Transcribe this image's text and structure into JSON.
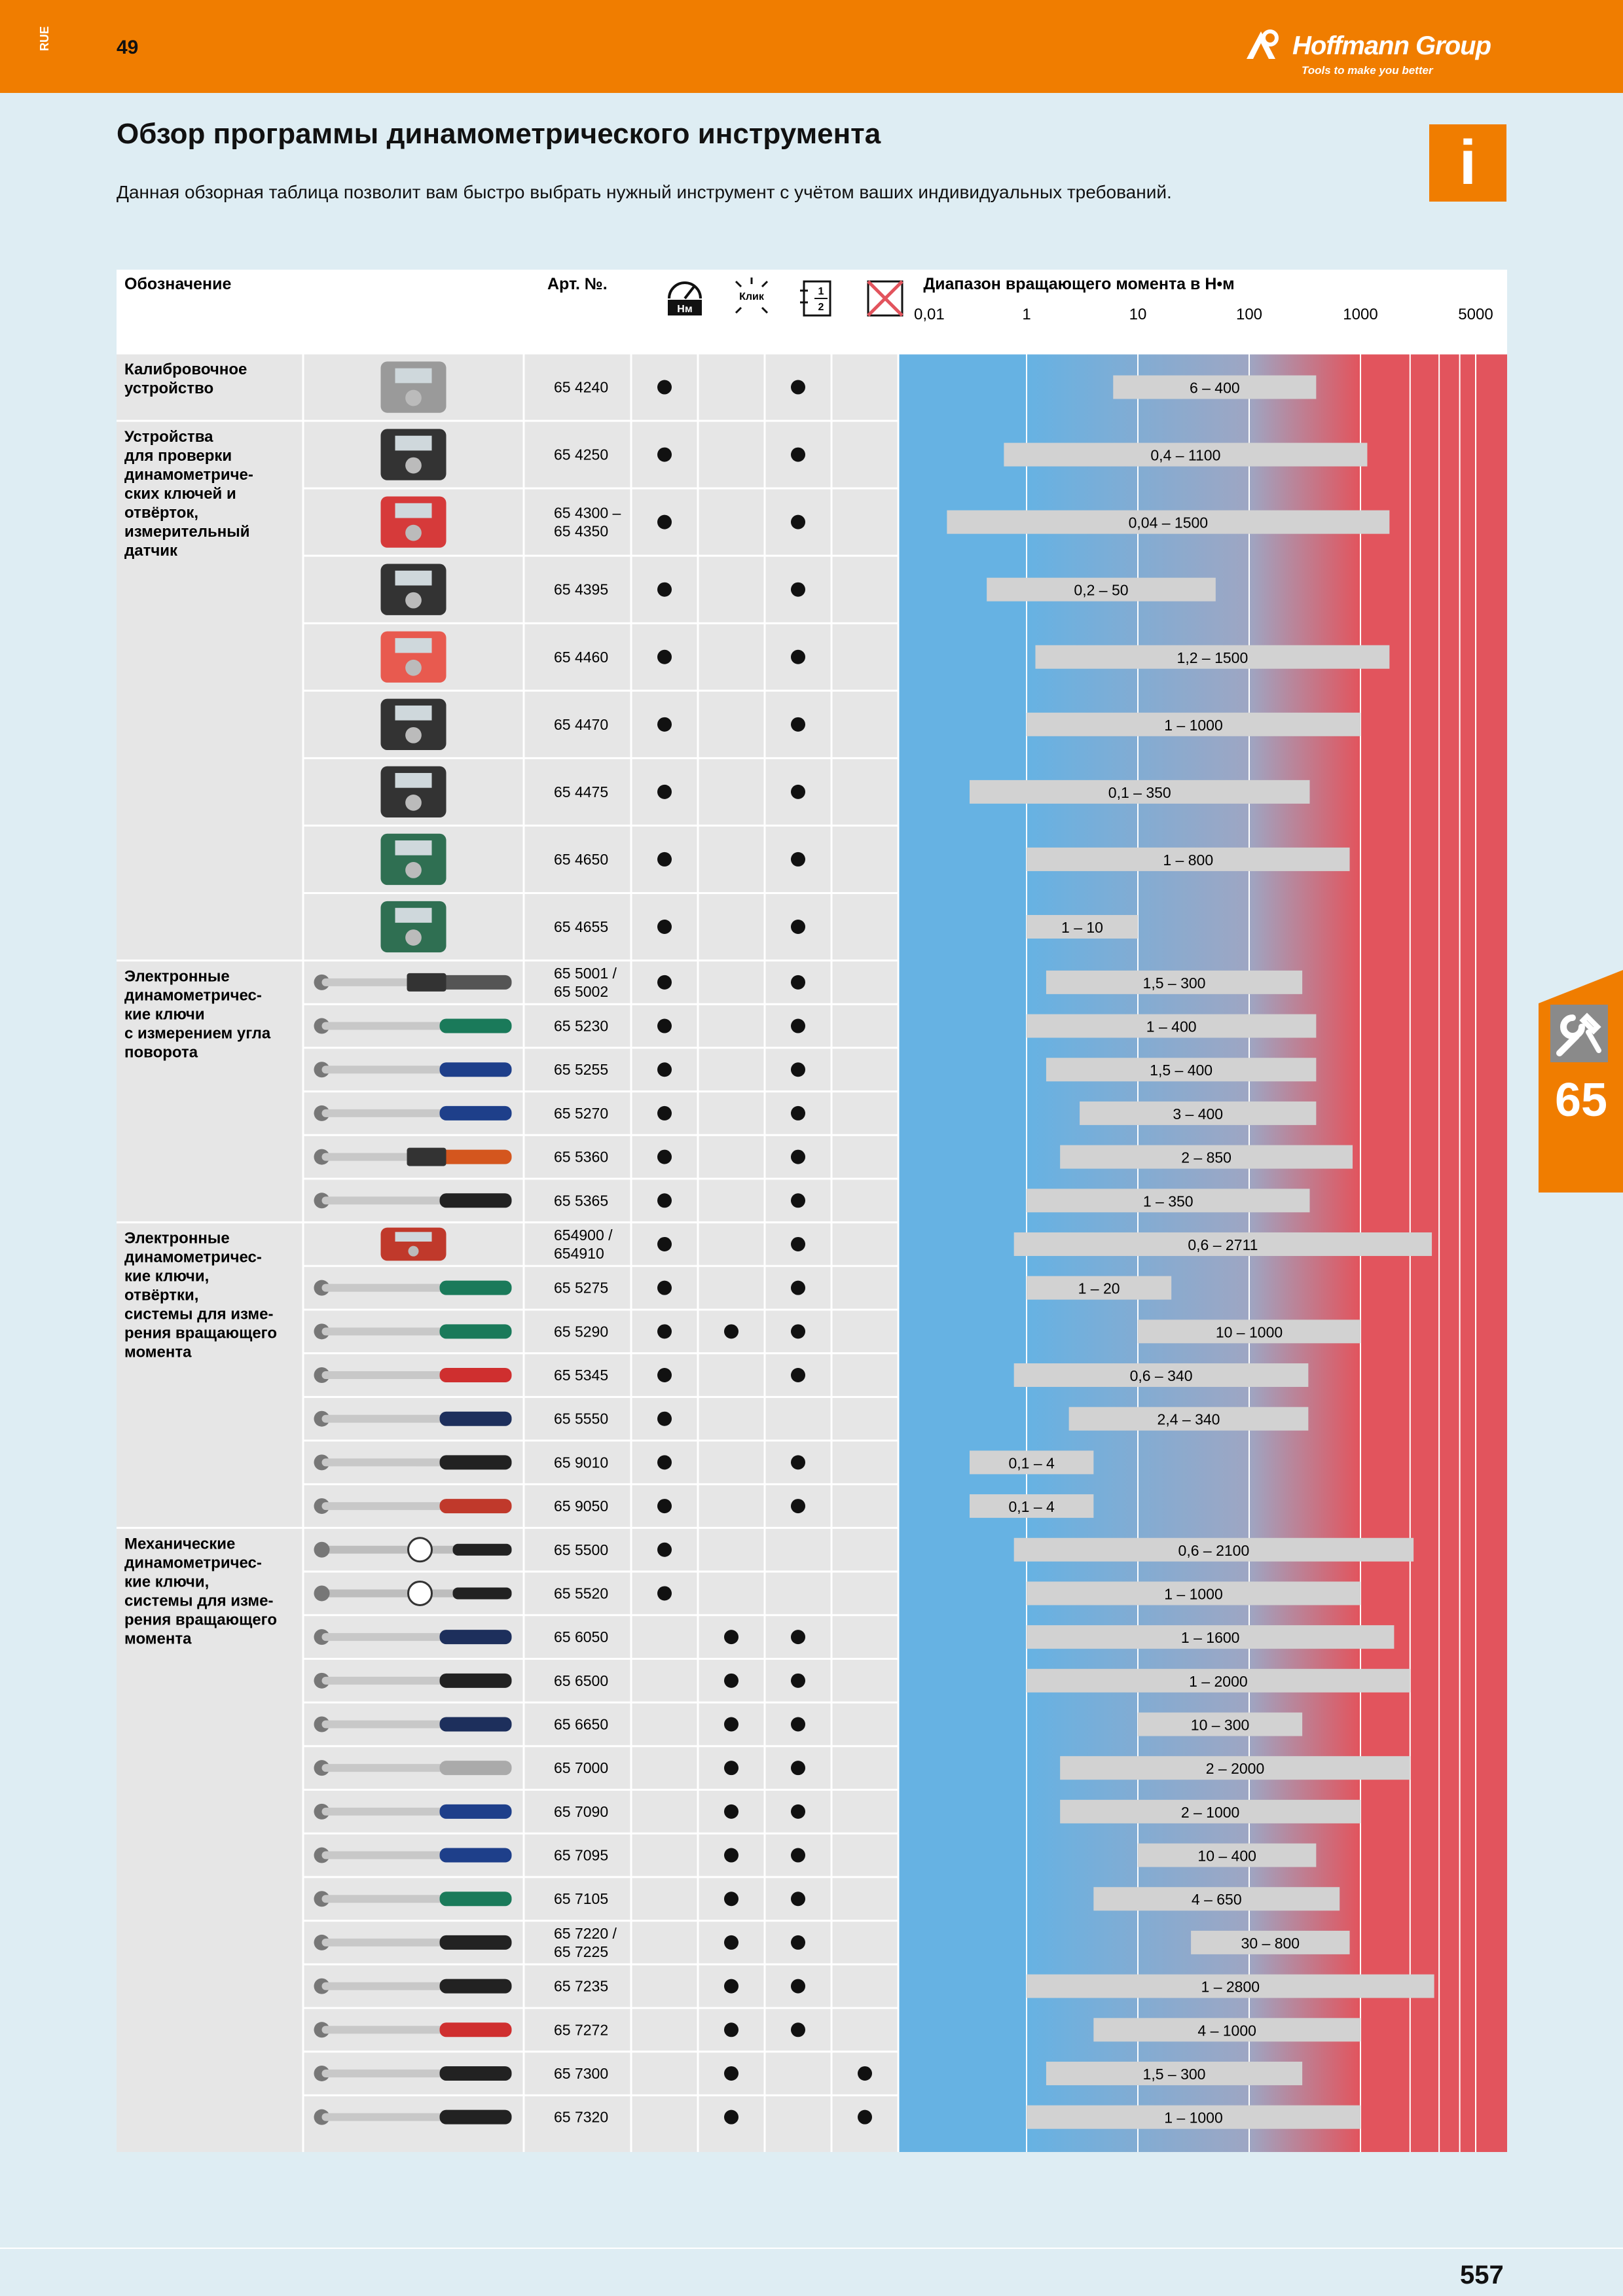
{
  "header": {
    "lang_code": "RUE",
    "page_top": "49",
    "brand": "Hoffmann Group",
    "brand_mark": "®",
    "slogan": "Tools to make you better"
  },
  "page": {
    "title": "Обзор программы динамометрического инструмента",
    "subtitle": "Данная обзорная таблица позволит вам быстро выбрать нужный инструмент с учётом ваших индивидуальных требований.",
    "info_letter": "i",
    "side_tab_number": "65",
    "page_bottom": "557"
  },
  "colors": {
    "orange": "#f07d00",
    "blue": "#66b2e3",
    "red": "#e2545d",
    "bar": "#d2d2d2",
    "page_bg": "#deedf3"
  },
  "table": {
    "col_designation": "Обозначение",
    "col_article": "Арт. №.",
    "icon_nm_label": "Нм",
    "icon_click_label": "Клик",
    "icon_half_1": "1",
    "icon_half_2": "2",
    "range_header": "Диапазон вращающего момента в Н•м",
    "scale_ticks": [
      "0,01",
      "1",
      "10",
      "100",
      "1000",
      "5000"
    ],
    "scale_tick_values": [
      0.01,
      1,
      10,
      100,
      1000,
      5000
    ],
    "groups": [
      {
        "label": [
          "Калибровочное",
          "устройство"
        ],
        "first_row": 0
      },
      {
        "label": [
          "Устройства",
          "для проверки",
          "динамометриче-",
          "ских ключей и",
          "отвёрток,",
          "измерительный",
          "датчик"
        ],
        "first_row": 1
      },
      {
        "label": [
          "Электронные",
          "динамометричес-",
          "кие ключи",
          "с измерением угла",
          "поворота"
        ],
        "first_row": 9
      },
      {
        "label": [
          "Электронные",
          "динамометричес-",
          "кие ключи,",
          "отвёртки,",
          "системы для изме-",
          "рения вращающего",
          "момента"
        ],
        "first_row": 15
      },
      {
        "label": [
          "Механические",
          "динамометричес-",
          "кие ключи,",
          "системы для изме-",
          "рения вращающего",
          "момента"
        ],
        "first_row": 22
      }
    ],
    "rows": [
      {
        "art": [
          "65 4240"
        ],
        "nm": true,
        "click": false,
        "half": true,
        "x": false,
        "min": 6,
        "max": 400,
        "range": "6 – 400",
        "img": "bench"
      },
      {
        "art": [
          "65 4250"
        ],
        "nm": true,
        "click": false,
        "half": true,
        "x": false,
        "min": 0.4,
        "max": 1100,
        "range": "0,4 – 1100",
        "img": "tester"
      },
      {
        "art": [
          "65 4300 –",
          "65 4350"
        ],
        "nm": true,
        "click": false,
        "half": true,
        "x": false,
        "min": 0.04,
        "max": 1500,
        "range": "0,04 – 1500",
        "img": "redbox"
      },
      {
        "art": [
          "65 4395"
        ],
        "nm": true,
        "click": false,
        "half": true,
        "x": false,
        "min": 0.2,
        "max": 50,
        "range": "0,2 – 50",
        "img": "tester"
      },
      {
        "art": [
          "65 4460"
        ],
        "nm": true,
        "click": false,
        "half": true,
        "x": false,
        "min": 1.2,
        "max": 1500,
        "range": "1,2 – 1500",
        "img": "sensor"
      },
      {
        "art": [
          "65 4470"
        ],
        "nm": true,
        "click": false,
        "half": true,
        "x": false,
        "min": 1,
        "max": 1000,
        "range": "1 – 1000",
        "img": "tester"
      },
      {
        "art": [
          "65 4475"
        ],
        "nm": true,
        "click": false,
        "half": true,
        "x": false,
        "min": 0.1,
        "max": 350,
        "range": "0,1 – 350",
        "img": "tester"
      },
      {
        "art": [
          "65 4650"
        ],
        "nm": true,
        "click": false,
        "half": true,
        "x": false,
        "min": 1,
        "max": 800,
        "range": "1 – 800",
        "img": "greenbox"
      },
      {
        "art": [
          "65 4655"
        ],
        "nm": true,
        "click": false,
        "half": true,
        "x": false,
        "min": 1,
        "max": 10,
        "range": "1 – 10",
        "img": "greenbox"
      },
      {
        "art": [
          "65 5001 /",
          "65 5002"
        ],
        "nm": true,
        "click": false,
        "half": true,
        "x": false,
        "min": 1.5,
        "max": 300,
        "range": "1,5 – 300",
        "img": "wrench-e"
      },
      {
        "art": [
          "65 5230"
        ],
        "nm": true,
        "click": false,
        "half": true,
        "x": false,
        "min": 1,
        "max": 400,
        "range": "1 – 400",
        "img": "wrench-green"
      },
      {
        "art": [
          "65 5255"
        ],
        "nm": true,
        "click": false,
        "half": true,
        "x": false,
        "min": 1.5,
        "max": 400,
        "range": "1,5 – 400",
        "img": "wrench-blue"
      },
      {
        "art": [
          "65 5270"
        ],
        "nm": true,
        "click": false,
        "half": true,
        "x": false,
        "min": 3,
        "max": 400,
        "range": "3 – 400",
        "img": "wrench-blue"
      },
      {
        "art": [
          "65 5360"
        ],
        "nm": true,
        "click": false,
        "half": true,
        "x": false,
        "min": 2,
        "max": 850,
        "range": "2 – 850",
        "img": "wrench-orange"
      },
      {
        "art": [
          "65 5365"
        ],
        "nm": true,
        "click": false,
        "half": true,
        "x": false,
        "min": 1,
        "max": 350,
        "range": "1 – 350",
        "img": "wrench-black"
      },
      {
        "art": [
          "654900 /",
          "654910"
        ],
        "nm": true,
        "click": false,
        "half": true,
        "x": false,
        "min": 0.6,
        "max": 2711,
        "range": "0,6 – 2711",
        "img": "system"
      },
      {
        "art": [
          "65 5275"
        ],
        "nm": true,
        "click": false,
        "half": true,
        "x": false,
        "min": 1,
        "max": 20,
        "range": "1 – 20",
        "img": "wrench-green"
      },
      {
        "art": [
          "65 5290"
        ],
        "nm": true,
        "click": true,
        "half": true,
        "x": false,
        "min": 10,
        "max": 1000,
        "range": "10 – 1000",
        "img": "wrench-green"
      },
      {
        "art": [
          "65 5345"
        ],
        "nm": true,
        "click": false,
        "half": true,
        "x": false,
        "min": 0.6,
        "max": 340,
        "range": "0,6 – 340",
        "img": "wrench-red"
      },
      {
        "art": [
          "65 5550"
        ],
        "nm": true,
        "click": false,
        "half": false,
        "x": false,
        "min": 2.4,
        "max": 340,
        "range": "2,4 – 340",
        "img": "wrench-navy"
      },
      {
        "art": [
          "65 9010"
        ],
        "nm": true,
        "click": false,
        "half": true,
        "x": false,
        "min": 0.1,
        "max": 4,
        "range": "0,1 – 4",
        "img": "driver"
      },
      {
        "art": [
          "65 9050"
        ],
        "nm": true,
        "click": false,
        "half": true,
        "x": false,
        "min": 0.1,
        "max": 4,
        "range": "0,1 – 4",
        "img": "driver-red"
      },
      {
        "art": [
          "65 5500"
        ],
        "nm": true,
        "click": false,
        "half": false,
        "x": false,
        "min": 0.6,
        "max": 2100,
        "range": "0,6 – 2100",
        "img": "dial"
      },
      {
        "art": [
          "65 5520"
        ],
        "nm": true,
        "click": false,
        "half": false,
        "x": false,
        "min": 1,
        "max": 1000,
        "range": "1 – 1000",
        "img": "dial"
      },
      {
        "art": [
          "65 6050"
        ],
        "nm": false,
        "click": true,
        "half": true,
        "x": false,
        "min": 1,
        "max": 1600,
        "range": "1 – 1600",
        "img": "wrench-navy"
      },
      {
        "art": [
          "65 6500"
        ],
        "nm": false,
        "click": true,
        "half": true,
        "x": false,
        "min": 1,
        "max": 2000,
        "range": "1 – 2000",
        "img": "wrench-black"
      },
      {
        "art": [
          "65 6650"
        ],
        "nm": false,
        "click": true,
        "half": true,
        "x": false,
        "min": 10,
        "max": 300,
        "range": "10 – 300",
        "img": "wrench-navy"
      },
      {
        "art": [
          "65 7000"
        ],
        "nm": false,
        "click": true,
        "half": true,
        "x": false,
        "min": 2,
        "max": 2000,
        "range": "2 – 2000",
        "img": "wrench-silver"
      },
      {
        "art": [
          "65 7090"
        ],
        "nm": false,
        "click": true,
        "half": true,
        "x": false,
        "min": 2,
        "max": 1000,
        "range": "2 – 1000",
        "img": "wrench-blue"
      },
      {
        "art": [
          "65 7095"
        ],
        "nm": false,
        "click": true,
        "half": true,
        "x": false,
        "min": 10,
        "max": 400,
        "range": "10 – 400",
        "img": "wrench-blue"
      },
      {
        "art": [
          "65 7105"
        ],
        "nm": false,
        "click": true,
        "half": true,
        "x": false,
        "min": 4,
        "max": 650,
        "range": "4 – 650",
        "img": "wrench-green"
      },
      {
        "art": [
          "65 7220 /",
          "65 7225"
        ],
        "nm": false,
        "click": true,
        "half": true,
        "x": false,
        "min": 30,
        "max": 800,
        "range": "30 – 800",
        "img": "wrench-black"
      },
      {
        "art": [
          "65 7235"
        ],
        "nm": false,
        "click": true,
        "half": true,
        "x": false,
        "min": 1,
        "max": 2800,
        "range": "1 – 2800",
        "img": "wrench-black"
      },
      {
        "art": [
          "65 7272"
        ],
        "nm": false,
        "click": true,
        "half": true,
        "x": false,
        "min": 4,
        "max": 1000,
        "range": "4 – 1000",
        "img": "wrench-red"
      },
      {
        "art": [
          "65 7300"
        ],
        "nm": false,
        "click": true,
        "half": false,
        "x": true,
        "min": 1.5,
        "max": 300,
        "range": "1,5 – 300",
        "img": "wrench-black"
      },
      {
        "art": [
          "65 7320"
        ],
        "nm": false,
        "click": true,
        "half": false,
        "x": true,
        "min": 1,
        "max": 1000,
        "range": "1 – 1000",
        "img": "wrench-black"
      }
    ]
  }
}
